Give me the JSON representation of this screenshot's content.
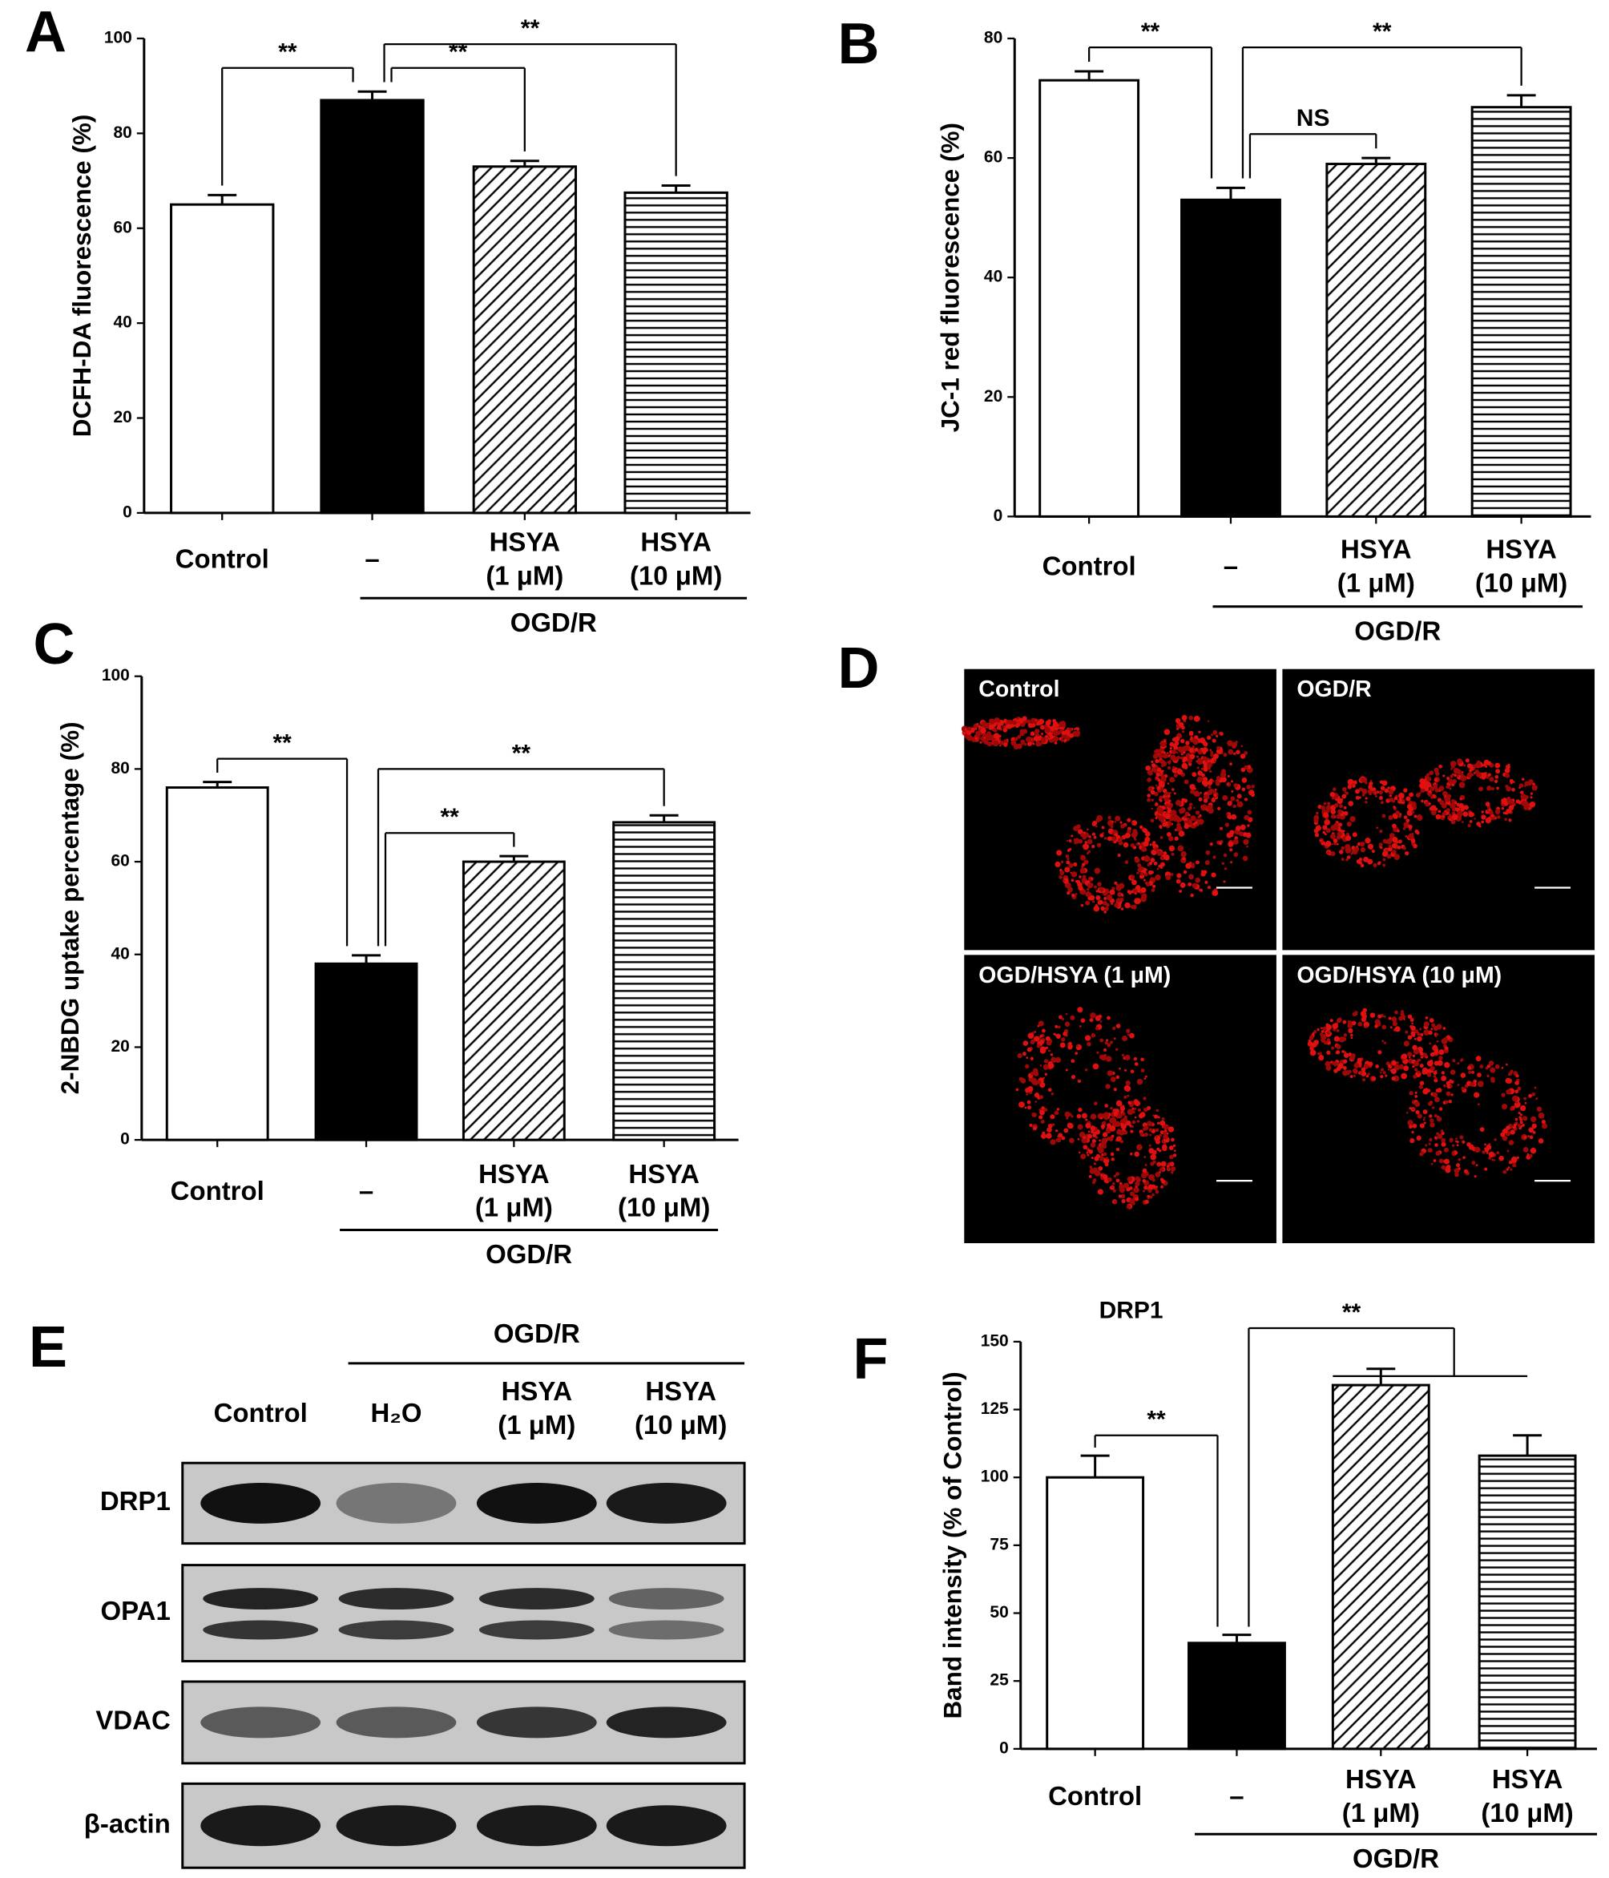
{
  "chart_data": [
    {
      "type": "bar",
      "panel": "A",
      "ylabel": "DCFH-DA fluorescence (%)",
      "categories": [
        [
          "Control"
        ],
        [
          "–"
        ],
        [
          "HSYA",
          "(1 μM)"
        ],
        [
          "HSYA",
          "(10 μM)"
        ]
      ],
      "group_label": "OGD/R",
      "values": [
        65,
        87,
        73,
        67.5
      ],
      "errors": [
        2,
        1.8,
        1.2,
        1.5
      ],
      "fills": [
        "white",
        "black",
        "diagonal",
        "horizontal"
      ],
      "ylim": [
        0,
        100
      ],
      "yticks": [
        0,
        20,
        40,
        60,
        80,
        100
      ],
      "brackets": [
        {
          "from": 1,
          "to": 0,
          "label": "**"
        },
        {
          "from": 1,
          "to": 2,
          "label": "**"
        },
        {
          "from": 1,
          "to": 3,
          "label": "**"
        }
      ]
    },
    {
      "type": "bar",
      "panel": "B",
      "ylabel": "JC-1 red fluorescence (%)",
      "categories": [
        [
          "Control"
        ],
        [
          "–"
        ],
        [
          "HSYA",
          "(1 μM)"
        ],
        [
          "HSYA",
          "(10 μM)"
        ]
      ],
      "group_label": "OGD/R",
      "values": [
        73,
        53,
        59,
        68.5
      ],
      "errors": [
        1.5,
        2,
        1,
        2
      ],
      "fills": [
        "white",
        "black",
        "diagonal",
        "horizontal"
      ],
      "ylim": [
        0,
        80
      ],
      "yticks": [
        0,
        20,
        40,
        60,
        80
      ],
      "brackets": [
        {
          "from": 1,
          "to": 0,
          "label": "**"
        },
        {
          "from": 1,
          "to": 2,
          "label": "NS"
        },
        {
          "from": 1,
          "to": 3,
          "label": "**"
        }
      ]
    },
    {
      "type": "bar",
      "panel": "C",
      "ylabel": "2-NBDG uptake percentage (%)",
      "categories": [
        [
          "Control"
        ],
        [
          "–"
        ],
        [
          "HSYA",
          "(1 μM)"
        ],
        [
          "HSYA",
          "(10 μM)"
        ]
      ],
      "group_label": "OGD/R",
      "values": [
        76,
        38,
        60,
        68.5
      ],
      "errors": [
        1.2,
        1.8,
        1.2,
        1.5
      ],
      "fills": [
        "white",
        "black",
        "diagonal",
        "horizontal"
      ],
      "ylim": [
        0,
        100
      ],
      "yticks": [
        0,
        20,
        40,
        60,
        80,
        100
      ],
      "brackets": [
        {
          "from": 1,
          "to": 0,
          "label": "**"
        },
        {
          "from": 1,
          "to": 2,
          "label": "**"
        },
        {
          "from": 1,
          "to": 3,
          "label": "**"
        }
      ]
    },
    {
      "type": "bar",
      "panel": "F",
      "title": "DRP1",
      "ylabel": "Band intensity  (% of Control)",
      "categories": [
        [
          "Control"
        ],
        [
          "–"
        ],
        [
          "HSYA",
          "(1 μM)"
        ],
        [
          "HSYA",
          "(10 μM)"
        ]
      ],
      "group_label": "OGD/R",
      "values": [
        100,
        39,
        134,
        108
      ],
      "errors": [
        8,
        3,
        6,
        7.5
      ],
      "fills": [
        "white",
        "black",
        "diagonal",
        "horizontal"
      ],
      "ylim": [
        0,
        150
      ],
      "yticks": [
        0,
        25,
        50,
        75,
        100,
        125,
        150
      ],
      "brackets": [
        {
          "from": 1,
          "to": 0,
          "label": "**"
        },
        {
          "from": 1,
          "to": [
            2,
            3
          ],
          "label": "**"
        }
      ]
    }
  ],
  "microscopy": {
    "panel": "D",
    "labels": [
      "Control",
      "OGD/R",
      "OGD/HSYA (1 μM)",
      "OGD/HSYA (10 μM)"
    ]
  },
  "western_blot": {
    "panel": "E",
    "group_label": "OGD/R",
    "lanes": [
      [
        "Control"
      ],
      [
        "H₂O"
      ],
      [
        "HSYA",
        "(1 μM)"
      ],
      [
        "HSYA",
        "(10 μM)"
      ]
    ],
    "bands": [
      "DRP1",
      "OPA1",
      "VDAC",
      "β-actin"
    ]
  }
}
